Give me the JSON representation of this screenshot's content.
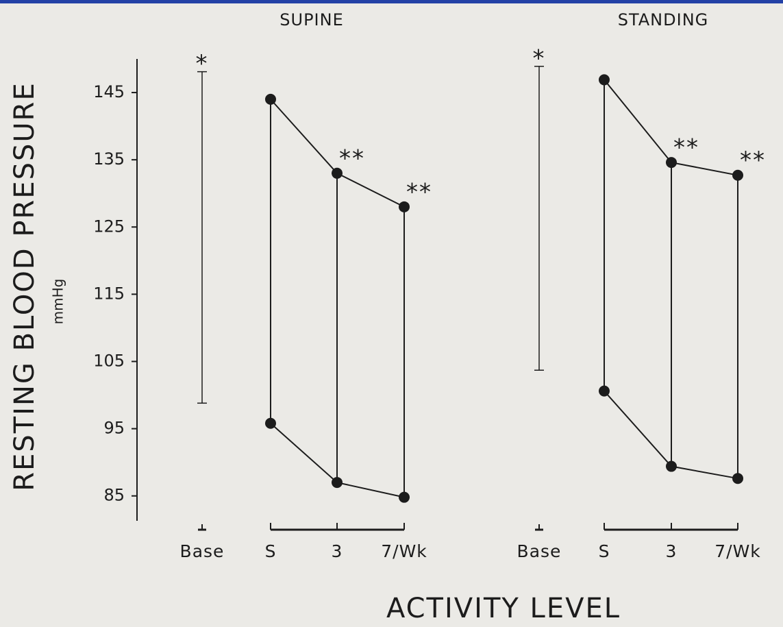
{
  "chart_data": {
    "type": "line",
    "y_label": "RESTING BLOOD PRESSURE",
    "y_unit": "mmHg",
    "x_label": "ACTIVITY LEVEL",
    "categories": [
      "Base",
      "S",
      "3",
      "7/Wk"
    ],
    "ylim": [
      81.3,
      150
    ],
    "yticks": [
      85,
      95,
      105,
      115,
      125,
      135,
      145
    ],
    "color": "#1c1c1c",
    "panels": [
      {
        "title": "SUPINE",
        "base_range": [
          98.8,
          148.1
        ],
        "systolic": [
          null,
          144,
          133,
          128
        ],
        "diastolic": [
          null,
          95.8,
          87,
          84.8
        ],
        "markers": [
          "*",
          null,
          "**",
          "**"
        ]
      },
      {
        "title": "STANDING",
        "base_range": [
          103.7,
          148.9
        ],
        "systolic": [
          null,
          146.9,
          134.6,
          132.7
        ],
        "diastolic": [
          null,
          100.6,
          89.4,
          87.6
        ],
        "markers": [
          "*",
          null,
          "**",
          "**"
        ]
      }
    ]
  }
}
